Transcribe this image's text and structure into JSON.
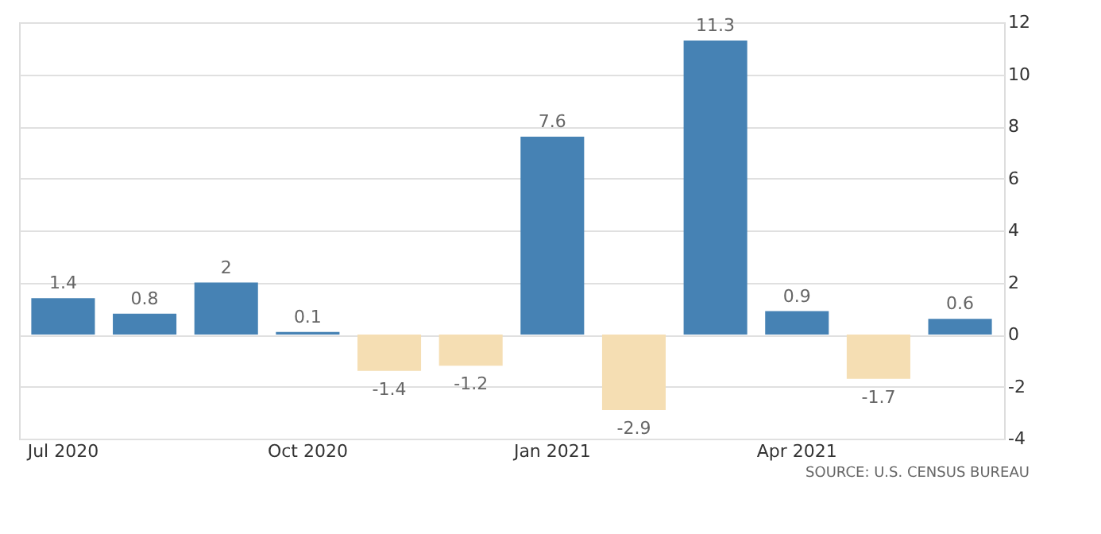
{
  "chart_data": {
    "type": "bar",
    "categories": [
      "Jul 2020",
      null,
      null,
      "Oct 2020",
      null,
      null,
      "Jan 2021",
      null,
      null,
      "Apr 2021",
      null,
      null
    ],
    "values": [
      1.4,
      0.8,
      2,
      0.1,
      -1.4,
      -1.2,
      7.6,
      -2.9,
      11.3,
      0.9,
      -1.7,
      0.6
    ],
    "colors": [
      "#4682b4",
      "#4682b4",
      "#4682b4",
      "#4682b4",
      "#f5deb3",
      "#f5deb3",
      "#4682b4",
      "#f5deb3",
      "#4682b4",
      "#4682b4",
      "#f5deb3",
      "#4682b4"
    ],
    "ylim": [
      -4,
      12
    ],
    "yticks": [
      -4,
      -2,
      0,
      2,
      4,
      6,
      8,
      10,
      12
    ],
    "grid": "y",
    "data_labels": true,
    "annotations": [
      "SOURCE: U.S. CENSUS BUREAU"
    ]
  }
}
